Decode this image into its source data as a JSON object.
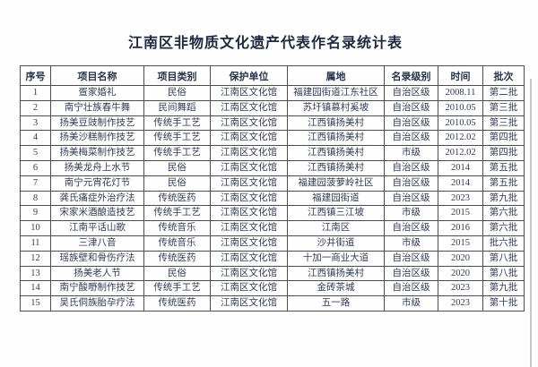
{
  "title": "江南区非物质文化遗产代表作名录统计表",
  "colors": {
    "text": "#303c55",
    "title_text": "#1e2940",
    "border": "#4d4d4d",
    "background": "#ffffff"
  },
  "table": {
    "columns": [
      "序号",
      "项目名称",
      "项目类别",
      "保护单位",
      "属地",
      "名录级别",
      "时间",
      "批次"
    ],
    "rows": [
      [
        "1",
        "疍家婚礼",
        "民俗",
        "江南区文化馆",
        "福建园街道江东社区",
        "自治区级",
        "2008.11",
        "第二批"
      ],
      [
        "2",
        "南宁壮族春牛舞",
        "民间舞蹈",
        "江南区文化馆",
        "苏圩镇慕村奚坡",
        "自治区级",
        "2010.05",
        "第三批"
      ],
      [
        "3",
        "扬美豆豉制作技艺",
        "传统手工艺",
        "江南区文化馆",
        "江西镇扬美村",
        "自治区级",
        "2010.05",
        "第三批"
      ],
      [
        "4",
        "扬美沙糕制作技艺",
        "传统手工艺",
        "江南区文化馆",
        "江西镇扬美村",
        "自治区级",
        "2012.02",
        "第四批"
      ],
      [
        "5",
        "扬美梅菜制作技艺",
        "传统手工艺",
        "江南区文化馆",
        "江西镇扬美村",
        "市级",
        "2012.02",
        "第四批"
      ],
      [
        "6",
        "扬美龙舟上水节",
        "民俗",
        "江南区文化馆",
        "江西镇扬美村",
        "自治区级",
        "2014",
        "第五批"
      ],
      [
        "7",
        "南宁元宵花灯节",
        "民俗",
        "江南区文化馆",
        "福建园菠萝岭社区",
        "自治区级",
        "2014",
        "第五批"
      ],
      [
        "8",
        "龚氏痛症外治疗法",
        "传统医药",
        "江南区文化馆",
        "福建园街道",
        "自治区级",
        "2023",
        "第九批"
      ],
      [
        "9",
        "宋家米酒酿造技艺",
        "传统手工艺",
        "江南区文化馆",
        "江西镇三江坡",
        "市级",
        "2015",
        "第六批"
      ],
      [
        "10",
        "江南平话山歌",
        "传统音乐",
        "江南区文化馆",
        "江南区",
        "自治区级",
        "2016",
        "第六批"
      ],
      [
        "11",
        "三津八音",
        "传统音乐",
        "江南区文化馆",
        "沙井街道",
        "市级",
        "2015",
        "批六批"
      ],
      [
        "12",
        "瑶族壁和骨伤疗法",
        "传统医药",
        "江南区文化馆",
        "十加一商业大道",
        "自治区级",
        "2020",
        "第八批"
      ],
      [
        "13",
        "扬美老人节",
        "民俗",
        "江南区文化馆",
        "江西镇扬美村",
        "自治区级",
        "2020",
        "第八批"
      ],
      [
        "14",
        "南宁酸嘢制作技艺",
        "传统手工艺",
        "江南区文化馆",
        "金砖茶城",
        "自治区级",
        "2023",
        "第九批"
      ],
      [
        "15",
        "吴氏侗族胎孕疗法",
        "传统医药",
        "江南区文化馆",
        "五一路",
        "市级",
        "2023",
        "第十批"
      ]
    ]
  }
}
